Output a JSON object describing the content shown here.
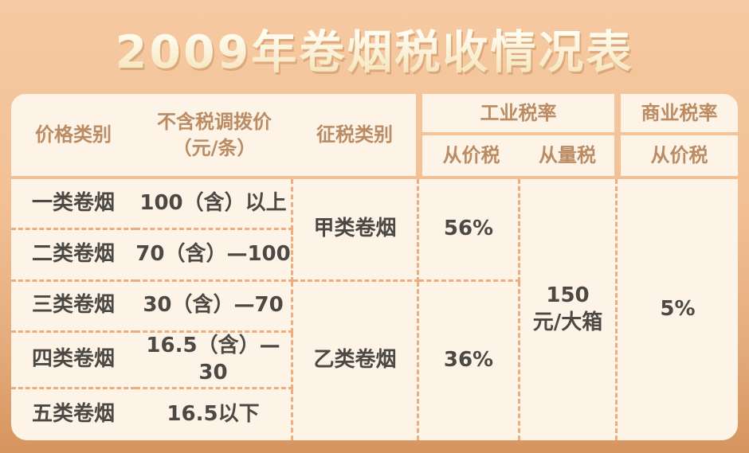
{
  "ui": {
    "title": "2009年卷烟税收情况表",
    "header": {
      "price_category": "价格类别",
      "allocation_price_line1": "不含税调拨价",
      "allocation_price_line2": "（元/条）",
      "tax_category": "征税类别",
      "industrial_rate_group": "工业税率",
      "commercial_rate_group": "商业税率",
      "industrial_ad_valorem": "从价税",
      "industrial_specific": "从量税",
      "commercial_ad_valorem": "从价税"
    },
    "rows": [
      {
        "category": "一类卷烟",
        "price": "100（含）以上"
      },
      {
        "category": "二类卷烟",
        "price": "70（含）—100"
      },
      {
        "category": "三类卷烟",
        "price": "30（含）—70"
      },
      {
        "category": "四类卷烟",
        "price": "16.5（含）—30"
      },
      {
        "category": "五类卷烟",
        "price": "16.5以下"
      }
    ],
    "merged": {
      "tax_class_a": "甲类卷烟",
      "tax_class_b": "乙类卷烟",
      "ad_valorem_a": "56%",
      "ad_valorem_b": "36%",
      "specific_line1": "150",
      "specific_line2": "元/大箱",
      "commercial_rate": "5%"
    }
  },
  "chart_data": {
    "type": "table",
    "title": "2009年卷烟税收情况表",
    "column_groups": [
      {
        "label": "工业税率",
        "children": [
          "从价税",
          "从量税"
        ]
      },
      {
        "label": "商业税率",
        "children": [
          "从价税"
        ]
      }
    ],
    "columns": [
      "价格类别",
      "不含税调拨价（元/条）",
      "征税类别",
      "从价税",
      "从量税",
      "从价税"
    ],
    "rows": [
      [
        "一类卷烟",
        "100（含）以上",
        "甲类卷烟",
        "56%",
        "150元/大箱",
        "5%"
      ],
      [
        "二类卷烟",
        "70（含）—100",
        "甲类卷烟",
        "56%",
        "150元/大箱",
        "5%"
      ],
      [
        "三类卷烟",
        "30（含）—70",
        "乙类卷烟",
        "36%",
        "150元/大箱",
        "5%"
      ],
      [
        "四类卷烟",
        "16.5（含）—30",
        "乙类卷烟",
        "36%",
        "150元/大箱",
        "5%"
      ],
      [
        "五类卷烟",
        "16.5以下",
        "乙类卷烟",
        "36%",
        "150元/大箱",
        "5%"
      ]
    ],
    "merged_cells_note": "甲类卷烟/56% span rows 1-2; 乙类卷烟/36% span rows 3-5; 150元/大箱 and 5% span all rows",
    "legend_position": "none",
    "grid": "dashed internal separators"
  },
  "colors": {
    "background_top": "#f6caa3",
    "background_bottom": "#d6945f",
    "panel_cream": "#fdf3e6",
    "header_text": "#bb8c63",
    "body_text": "#4c4945",
    "dashed_line": "#ecae7e",
    "title_text_top": "#fffdf2",
    "title_text_bottom": "#f4e2b6"
  }
}
